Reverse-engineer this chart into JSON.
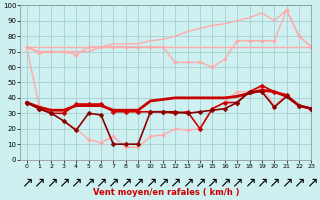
{
  "xlabel": "Vent moyen/en rafales ( km/h )",
  "xlim": [
    -0.5,
    23
  ],
  "ylim": [
    0,
    100
  ],
  "yticks": [
    0,
    10,
    20,
    30,
    40,
    50,
    60,
    70,
    80,
    90,
    100
  ],
  "xticks": [
    0,
    1,
    2,
    3,
    4,
    5,
    6,
    7,
    8,
    9,
    10,
    11,
    12,
    13,
    14,
    15,
    16,
    17,
    18,
    19,
    20,
    21,
    22,
    23
  ],
  "bg_color": "#cef0f0",
  "grid_color": "#a0c8c8",
  "series": [
    {
      "x": [
        0,
        1,
        2,
        3,
        4,
        5,
        6,
        7,
        8,
        9,
        10,
        11,
        12,
        13,
        14,
        15,
        16,
        17,
        18,
        19,
        20,
        21,
        22,
        23
      ],
      "y": [
        73,
        73,
        73,
        73,
        73,
        73,
        73,
        73,
        73,
        73,
        73,
        73,
        73,
        73,
        73,
        73,
        73,
        73,
        73,
        73,
        73,
        73,
        73,
        73
      ],
      "color": "#ffaaaa",
      "lw": 1.0,
      "marker": null,
      "zorder": 2
    },
    {
      "x": [
        0,
        1,
        2,
        3,
        4,
        5,
        6,
        7,
        8,
        9,
        10,
        11,
        12,
        13,
        14,
        15,
        16,
        17,
        18,
        19,
        20,
        21,
        22,
        23
      ],
      "y": [
        73,
        70,
        70,
        70,
        70,
        70,
        73,
        75,
        75,
        75,
        77,
        78,
        80,
        83,
        85,
        87,
        88,
        90,
        92,
        95,
        90,
        97,
        80,
        73
      ],
      "color": "#ffaaaa",
      "lw": 1.0,
      "marker": null,
      "zorder": 2
    },
    {
      "x": [
        0,
        1,
        2,
        3,
        4,
        5,
        6,
        7,
        8,
        9,
        10,
        11,
        12,
        13,
        14,
        15,
        16,
        17,
        18,
        19,
        20,
        21,
        22,
        23
      ],
      "y": [
        73,
        69,
        70,
        70,
        68,
        73,
        73,
        73,
        73,
        73,
        73,
        73,
        63,
        63,
        63,
        60,
        65,
        77,
        77,
        77,
        77,
        97,
        80,
        73
      ],
      "color": "#ffaaaa",
      "lw": 1.0,
      "marker": "D",
      "ms": 2,
      "zorder": 2
    },
    {
      "x": [
        0,
        1,
        2,
        3,
        4,
        5,
        6,
        7,
        8,
        9,
        10,
        11,
        12,
        13,
        14,
        15,
        16,
        17,
        18,
        19,
        20,
        21,
        22,
        23
      ],
      "y": [
        73,
        35,
        30,
        25,
        20,
        13,
        11,
        15,
        8,
        8,
        15,
        16,
        20,
        19,
        20,
        33,
        37,
        44,
        44,
        47,
        35,
        42,
        35,
        33
      ],
      "color": "#ffaaaa",
      "lw": 1.0,
      "marker": "D",
      "ms": 2,
      "zorder": 2
    },
    {
      "x": [
        0,
        1,
        2,
        3,
        4,
        5,
        6,
        7,
        8,
        9,
        10,
        11,
        12,
        13,
        14,
        15,
        16,
        17,
        18,
        19,
        20,
        21,
        22,
        23
      ],
      "y": [
        37,
        33,
        30,
        30,
        36,
        36,
        36,
        31,
        31,
        31,
        31,
        31,
        30,
        31,
        20,
        33,
        37,
        37,
        44,
        48,
        44,
        42,
        35,
        33
      ],
      "color": "#cc0000",
      "lw": 1.2,
      "marker": "D",
      "ms": 2.5,
      "zorder": 4
    },
    {
      "x": [
        0,
        1,
        2,
        3,
        4,
        5,
        6,
        7,
        8,
        9,
        10,
        11,
        12,
        13,
        14,
        15,
        16,
        17,
        18,
        19,
        20,
        21,
        22,
        23
      ],
      "y": [
        37,
        34,
        32,
        32,
        35,
        35,
        35,
        32,
        32,
        32,
        38,
        39,
        40,
        40,
        40,
        40,
        40,
        41,
        43,
        45,
        44,
        41,
        35,
        33
      ],
      "color": "#cc0000",
      "lw": 2.0,
      "marker": null,
      "zorder": 3
    },
    {
      "x": [
        0,
        1,
        2,
        3,
        4,
        5,
        6,
        7,
        8,
        9,
        10,
        11,
        12,
        13,
        14,
        15,
        16,
        17,
        18,
        19,
        20,
        21,
        22,
        23
      ],
      "y": [
        37,
        33,
        30,
        25,
        19,
        30,
        29,
        10,
        10,
        10,
        31,
        31,
        31,
        30,
        31,
        32,
        33,
        37,
        44,
        44,
        34,
        41,
        35,
        33
      ],
      "color": "#880000",
      "lw": 1.2,
      "marker": "D",
      "ms": 2.5,
      "zorder": 4
    }
  ],
  "wind_arrows_x": [
    0,
    1,
    2,
    3,
    4,
    5,
    6,
    7,
    8,
    9,
    10,
    11,
    12,
    13,
    14,
    15,
    16,
    17,
    18,
    19,
    20,
    21,
    22,
    23
  ],
  "arrow_color": "#cc0000",
  "xlabel_color": "#cc0000",
  "xlabel_fontsize": 6,
  "tick_fontsize": 5,
  "arrow_fontsize": 5
}
